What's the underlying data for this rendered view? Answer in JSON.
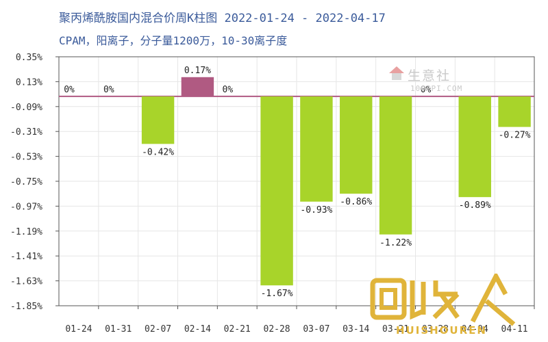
{
  "title": "聚丙烯酰胺国内混合价周K柱图  2022-01-24 - 2022-04-17",
  "subtitle": "CPAM，阳离子，分子量1200万，10-30离子度",
  "watermark": {
    "main": "生意社",
    "sub": "100PPI.COM"
  },
  "logo": {
    "text": "HUISHOUREN"
  },
  "chart_data": {
    "type": "bar",
    "categories": [
      "01-24",
      "01-31",
      "02-07",
      "02-14",
      "02-21",
      "02-28",
      "03-07",
      "03-14",
      "03-21",
      "03-28",
      "04-04",
      "04-11"
    ],
    "values": [
      0,
      0,
      -0.42,
      0.17,
      0,
      -1.67,
      -0.93,
      -0.86,
      -1.22,
      0,
      -0.89,
      -0.27
    ],
    "data_labels": [
      "0%",
      "0%",
      "-0.42%",
      "0.17%",
      "0%",
      "-1.67%",
      "-0.93%",
      "-0.86%",
      "-1.22%",
      "0%",
      "-0.89%",
      "-0.27%"
    ],
    "y_ticks": [
      0.35,
      0.13,
      -0.09,
      -0.31,
      -0.53,
      -0.75,
      -0.97,
      -1.19,
      -1.41,
      -1.63,
      -1.85
    ],
    "y_tick_labels": [
      "0.35%",
      "0.13%",
      "-0.09%",
      "-0.31%",
      "-0.53%",
      "-0.75%",
      "-0.97%",
      "-1.19%",
      "-1.41%",
      "-1.63%",
      "-1.85%"
    ],
    "ylim": [
      -1.85,
      0.35
    ],
    "grid": true,
    "colors": {
      "negative": "#a8d42a",
      "positive": "#b05a82",
      "zero_line": "#b05a82",
      "grid": "#e6e6e6",
      "axis": "#555555"
    }
  }
}
